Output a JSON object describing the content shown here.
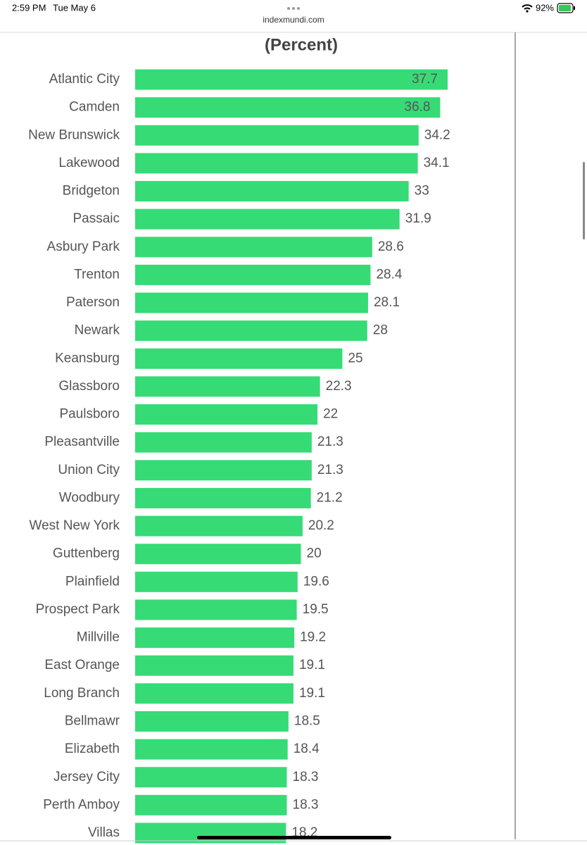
{
  "status": {
    "time": "2:59 PM",
    "date": "Tue May 6",
    "url": "indexmundi.com",
    "battery": "92%"
  },
  "chart_data": {
    "type": "bar",
    "orientation": "horizontal",
    "title": "(Percent)",
    "color": "#36db76",
    "categories": [
      "Atlantic City",
      "Camden",
      "New Brunswick",
      "Lakewood",
      "Bridgeton",
      "Passaic",
      "Asbury Park",
      "Trenton",
      "Paterson",
      "Newark",
      "Keansburg",
      "Glassboro",
      "Paulsboro",
      "Pleasantville",
      "Union City",
      "Woodbury",
      "West New York",
      "Guttenberg",
      "Plainfield",
      "Prospect Park",
      "Millville",
      "East Orange",
      "Long Branch",
      "Bellmawr",
      "Elizabeth",
      "Jersey City",
      "Perth Amboy",
      "Villas"
    ],
    "values": [
      37.7,
      36.8,
      34.2,
      34.1,
      33,
      31.9,
      28.6,
      28.4,
      28.1,
      28,
      25,
      22.3,
      22,
      21.3,
      21.3,
      21.2,
      20.2,
      20,
      19.6,
      19.5,
      19.2,
      19.1,
      19.1,
      18.5,
      18.4,
      18.3,
      18.3,
      18.2
    ]
  }
}
